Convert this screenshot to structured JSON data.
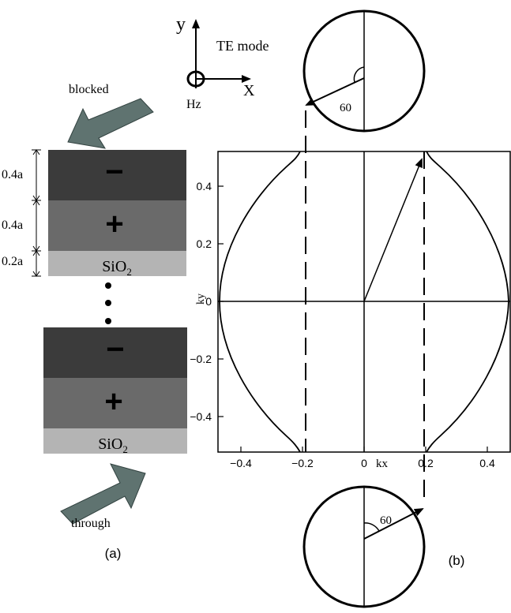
{
  "coordinate_system": {
    "y_label": "y",
    "x_label": "X",
    "mode_label": "TE mode",
    "field_label": "Hz"
  },
  "panel_a": {
    "label": "(a)",
    "top_arrow_label": "blocked",
    "bottom_arrow_label": "through",
    "layer_labels": {
      "thickness_1": "0.4a",
      "thickness_2": "0.4a",
      "thickness_3": "0.2a",
      "oxide_main": "SiO",
      "oxide_sub": "2"
    },
    "layer_colors": {
      "negative_layer": "#3b3b3b",
      "positive_layer": "#6a6a6a",
      "oxide_layer": "#b4b4b4",
      "arrow_fill": "#5f7370"
    },
    "layer_signs": [
      "−",
      "+",
      "−",
      "+"
    ]
  },
  "panel_b": {
    "label": "(b)",
    "x_axis_label": "kx",
    "y_axis_label": "ky",
    "x_ticks": [
      "−0.4",
      "−0.2",
      "0",
      "0.2",
      "0.4"
    ],
    "y_ticks": [
      "0.4",
      "0.2",
      "0",
      "−0.2",
      "−0.4"
    ],
    "top_angle_label": "60",
    "bottom_angle_label": "60"
  }
}
